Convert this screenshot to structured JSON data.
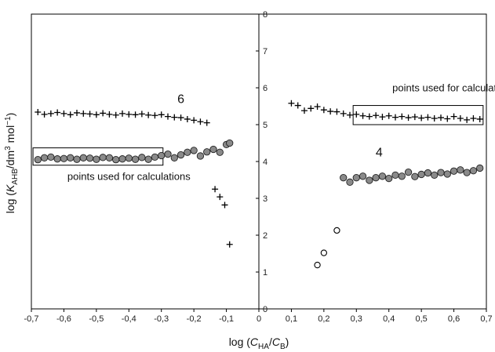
{
  "chart_data": {
    "type": "scatter",
    "xlabel_parts": {
      "pre": "log (",
      "c1": "C",
      "s1": "HA",
      "mid": "/",
      "c2": "C",
      "s2": "B",
      "post": ")"
    },
    "ylabel_parts": {
      "pre": "log (",
      "k": "K",
      "sub": "AHB",
      "mid": "/dm",
      "sup1": "3",
      "mid2": " mol",
      "sup2": "−1",
      "post": ")"
    },
    "xlim": [
      -0.7,
      0.7
    ],
    "ylim": [
      0,
      8
    ],
    "x_ticks": [
      -0.7,
      -0.6,
      -0.5,
      -0.4,
      -0.3,
      -0.2,
      -0.1,
      0,
      0.1,
      0.2,
      0.3,
      0.4,
      0.5,
      0.6,
      0.7
    ],
    "x_tick_labels": [
      "-0,7",
      "-0,6",
      "-0,5",
      "-0,4",
      "-0,3",
      "-0,2",
      "-0,1",
      "0",
      "0,1",
      "0,2",
      "0,3",
      "0,4",
      "0,5",
      "0,6",
      "0,7"
    ],
    "y_ticks": [
      0,
      1,
      2,
      3,
      4,
      5,
      6,
      7,
      8
    ],
    "y_tick_labels": [
      "0",
      "1",
      "2",
      "3",
      "4",
      "5",
      "6",
      "7",
      "8"
    ],
    "grid": false,
    "series": [
      {
        "marker": "plus",
        "points": [
          [
            -0.68,
            5.34
          ],
          [
            -0.66,
            5.28
          ],
          [
            -0.64,
            5.3
          ],
          [
            -0.62,
            5.33
          ],
          [
            -0.6,
            5.3
          ],
          [
            -0.58,
            5.27
          ],
          [
            -0.56,
            5.32
          ],
          [
            -0.54,
            5.3
          ],
          [
            -0.52,
            5.29
          ],
          [
            -0.5,
            5.27
          ],
          [
            -0.48,
            5.31
          ],
          [
            -0.46,
            5.28
          ],
          [
            -0.44,
            5.26
          ],
          [
            -0.42,
            5.3
          ],
          [
            -0.4,
            5.28
          ],
          [
            -0.38,
            5.27
          ],
          [
            -0.36,
            5.29
          ],
          [
            -0.34,
            5.26
          ],
          [
            -0.32,
            5.25
          ],
          [
            -0.3,
            5.27
          ],
          [
            -0.28,
            5.22
          ],
          [
            -0.26,
            5.2
          ],
          [
            -0.24,
            5.19
          ],
          [
            -0.22,
            5.15
          ],
          [
            -0.2,
            5.12
          ],
          [
            -0.18,
            5.08
          ],
          [
            -0.16,
            5.05
          ]
        ]
      },
      {
        "marker": "plus",
        "points": [
          [
            -0.135,
            3.25
          ],
          [
            -0.12,
            3.04
          ],
          [
            -0.105,
            2.82
          ],
          [
            -0.09,
            1.75
          ]
        ]
      },
      {
        "marker": "circle-filled",
        "points": [
          [
            -0.68,
            4.05
          ],
          [
            -0.66,
            4.1
          ],
          [
            -0.64,
            4.12
          ],
          [
            -0.62,
            4.07
          ],
          [
            -0.6,
            4.08
          ],
          [
            -0.58,
            4.1
          ],
          [
            -0.56,
            4.06
          ],
          [
            -0.54,
            4.1
          ],
          [
            -0.52,
            4.09
          ],
          [
            -0.5,
            4.06
          ],
          [
            -0.48,
            4.11
          ],
          [
            -0.46,
            4.1
          ],
          [
            -0.44,
            4.05
          ],
          [
            -0.42,
            4.07
          ],
          [
            -0.4,
            4.09
          ],
          [
            -0.38,
            4.06
          ],
          [
            -0.36,
            4.11
          ],
          [
            -0.34,
            4.06
          ],
          [
            -0.32,
            4.12
          ],
          [
            -0.3,
            4.16
          ],
          [
            -0.28,
            4.2
          ],
          [
            -0.26,
            4.1
          ],
          [
            -0.24,
            4.18
          ],
          [
            -0.22,
            4.25
          ],
          [
            -0.2,
            4.3
          ],
          [
            -0.18,
            4.15
          ],
          [
            -0.16,
            4.26
          ],
          [
            -0.14,
            4.33
          ],
          [
            -0.12,
            4.25
          ],
          [
            -0.1,
            4.46
          ],
          [
            -0.09,
            4.5
          ]
        ]
      },
      {
        "marker": "plus",
        "points": [
          [
            0.1,
            5.58
          ],
          [
            0.12,
            5.52
          ],
          [
            0.14,
            5.38
          ],
          [
            0.16,
            5.44
          ],
          [
            0.18,
            5.49
          ],
          [
            0.2,
            5.4
          ],
          [
            0.22,
            5.36
          ],
          [
            0.24,
            5.35
          ],
          [
            0.26,
            5.3
          ],
          [
            0.28,
            5.26
          ],
          [
            0.3,
            5.28
          ],
          [
            0.32,
            5.24
          ],
          [
            0.34,
            5.22
          ],
          [
            0.36,
            5.25
          ],
          [
            0.38,
            5.21
          ],
          [
            0.4,
            5.24
          ],
          [
            0.42,
            5.2
          ],
          [
            0.44,
            5.22
          ],
          [
            0.46,
            5.19
          ],
          [
            0.48,
            5.21
          ],
          [
            0.5,
            5.18
          ],
          [
            0.52,
            5.2
          ],
          [
            0.54,
            5.17
          ],
          [
            0.56,
            5.19
          ],
          [
            0.58,
            5.16
          ],
          [
            0.6,
            5.22
          ],
          [
            0.62,
            5.17
          ],
          [
            0.64,
            5.13
          ],
          [
            0.66,
            5.17
          ],
          [
            0.68,
            5.15
          ]
        ]
      },
      {
        "marker": "circle-filled",
        "points": [
          [
            0.26,
            3.56
          ],
          [
            0.28,
            3.44
          ],
          [
            0.3,
            3.56
          ],
          [
            0.32,
            3.6
          ],
          [
            0.34,
            3.49
          ],
          [
            0.36,
            3.56
          ],
          [
            0.38,
            3.6
          ],
          [
            0.4,
            3.54
          ],
          [
            0.42,
            3.63
          ],
          [
            0.44,
            3.6
          ],
          [
            0.46,
            3.71
          ],
          [
            0.48,
            3.59
          ],
          [
            0.5,
            3.65
          ],
          [
            0.52,
            3.69
          ],
          [
            0.54,
            3.63
          ],
          [
            0.56,
            3.7
          ],
          [
            0.58,
            3.66
          ],
          [
            0.6,
            3.74
          ],
          [
            0.62,
            3.77
          ],
          [
            0.64,
            3.7
          ],
          [
            0.66,
            3.75
          ],
          [
            0.68,
            3.82
          ]
        ]
      },
      {
        "marker": "circle-open",
        "points": [
          [
            0.18,
            1.19
          ],
          [
            0.2,
            1.52
          ],
          [
            0.24,
            2.13
          ]
        ]
      }
    ],
    "boxes": [
      {
        "x": [
          -0.695,
          -0.295
        ],
        "y": [
          3.9,
          4.37
        ]
      },
      {
        "x": [
          0.29,
          0.69
        ],
        "y": [
          5.0,
          5.52
        ]
      }
    ],
    "annotations": [
      {
        "text": "points used for calculations",
        "at": [
          0.6,
          5.9
        ],
        "anchor": "middle"
      },
      {
        "text": "points used for calculations",
        "at": [
          -0.4,
          3.5
        ],
        "anchor": "middle"
      }
    ],
    "series_labels": [
      {
        "text": "6",
        "at": [
          -0.24,
          5.58
        ]
      },
      {
        "text": "4",
        "at": [
          0.37,
          4.14
        ]
      }
    ]
  }
}
